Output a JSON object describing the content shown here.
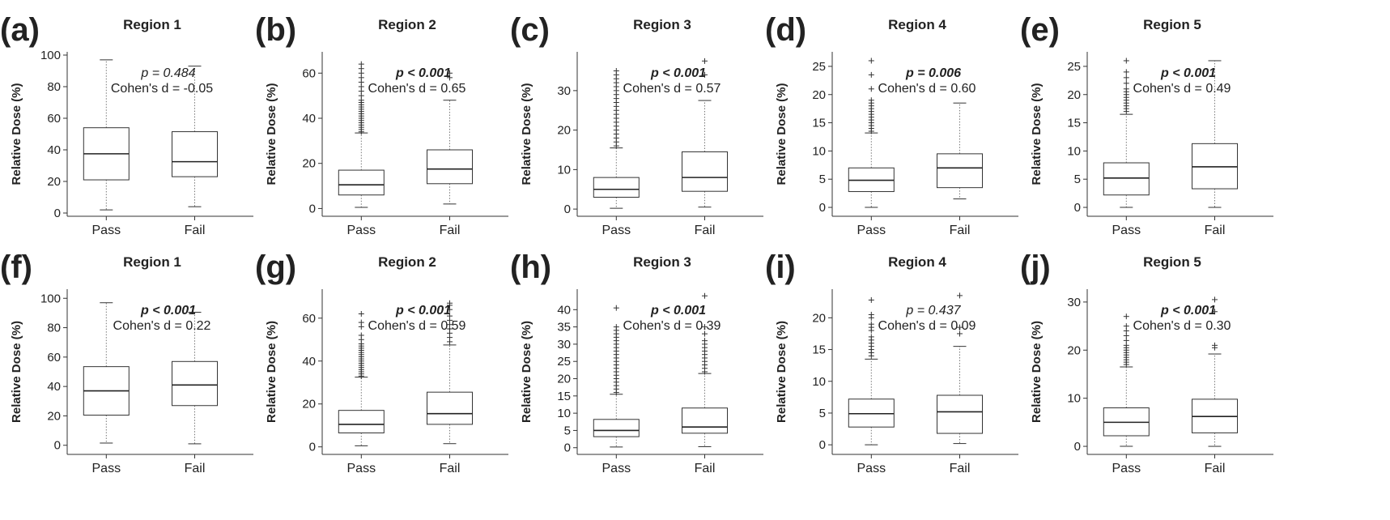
{
  "figure": {
    "ylabel": "Relative Dose (%)",
    "categories": [
      "Pass",
      "Fail"
    ]
  },
  "chart_data": [
    {
      "panel": "(a)",
      "type": "box",
      "title": "Region 1",
      "ylim": [
        0,
        100
      ],
      "yticks": [
        0,
        20,
        40,
        60,
        80,
        100
      ],
      "p_text": "p = 0.484",
      "p_bold": false,
      "d_text": "Cohen's d = -0.05",
      "boxes": [
        {
          "category": "Pass",
          "whisker_low": 2,
          "q1": 21,
          "median": 37.5,
          "q3": 54,
          "whisker_high": 97,
          "outliers": []
        },
        {
          "category": "Fail",
          "whisker_low": 4,
          "q1": 23,
          "median": 32.5,
          "q3": 51.5,
          "whisker_high": 93,
          "outliers": []
        }
      ]
    },
    {
      "panel": "(b)",
      "type": "box",
      "title": "Region 2",
      "ylim": [
        -2,
        68
      ],
      "yticks": [
        0,
        20,
        40,
        60
      ],
      "p_text": "p < 0.001",
      "p_bold": true,
      "d_text": "Cohen's d = 0.65",
      "boxes": [
        {
          "category": "Pass",
          "whisker_low": 0.5,
          "q1": 6,
          "median": 10.5,
          "q3": 17,
          "whisker_high": 33.5,
          "outliers": [
            34,
            35,
            36,
            37,
            38,
            39,
            40,
            41,
            42,
            43,
            44,
            45,
            46,
            47,
            48,
            50,
            52,
            54,
            56,
            58,
            60,
            62,
            64
          ]
        },
        {
          "category": "Fail",
          "whisker_low": 2,
          "q1": 11,
          "median": 17.5,
          "q3": 26,
          "whisker_high": 48,
          "outliers": [
            58,
            60
          ]
        }
      ]
    },
    {
      "panel": "(c)",
      "type": "box",
      "title": "Region 3",
      "ylim": [
        -1,
        39
      ],
      "yticks": [
        0,
        10,
        20,
        30
      ],
      "p_text": "p < 0.001",
      "p_bold": true,
      "d_text": "Cohen's d = 0.57",
      "boxes": [
        {
          "category": "Pass",
          "whisker_low": 0.2,
          "q1": 3,
          "median": 5,
          "q3": 8,
          "whisker_high": 15.5,
          "outliers": [
            16,
            17,
            18,
            19,
            20,
            21,
            22,
            23,
            24,
            25,
            26,
            27,
            28,
            29,
            30,
            31,
            32,
            33,
            34,
            35
          ]
        },
        {
          "category": "Fail",
          "whisker_low": 0.5,
          "q1": 4.5,
          "median": 8,
          "q3": 14.5,
          "whisker_high": 27.5,
          "outliers": [
            34,
            37.5
          ]
        }
      ]
    },
    {
      "panel": "(d)",
      "type": "box",
      "title": "Region 4",
      "ylim": [
        -1,
        27
      ],
      "yticks": [
        0,
        5,
        10,
        15,
        20,
        25
      ],
      "p_text": "p = 0.006",
      "p_bold": true,
      "d_text": "Cohen's d = 0.60",
      "boxes": [
        {
          "category": "Pass",
          "whisker_low": 0,
          "q1": 2.8,
          "median": 4.8,
          "q3": 7,
          "whisker_high": 13.2,
          "outliers": [
            13.5,
            14,
            14.5,
            15,
            15.5,
            16,
            16.5,
            17,
            17.5,
            18,
            18.5,
            19,
            21,
            23.5,
            26
          ]
        },
        {
          "category": "Fail",
          "whisker_low": 1.5,
          "q1": 3.5,
          "median": 7,
          "q3": 9.5,
          "whisker_high": 18.5,
          "outliers": []
        }
      ]
    },
    {
      "panel": "(e)",
      "type": "box",
      "title": "Region 5",
      "ylim": [
        -1,
        27
      ],
      "yticks": [
        0,
        5,
        10,
        15,
        20,
        25
      ],
      "p_text": "p < 0.001",
      "p_bold": true,
      "d_text": "Cohen's d = 0.49",
      "boxes": [
        {
          "category": "Pass",
          "whisker_low": 0,
          "q1": 2.2,
          "median": 5.2,
          "q3": 7.9,
          "whisker_high": 16.5,
          "outliers": [
            17,
            17.5,
            18,
            18.5,
            19,
            19.5,
            20,
            20.5,
            21,
            22,
            23,
            24,
            26
          ]
        },
        {
          "category": "Fail",
          "whisker_low": 0,
          "q1": 3.3,
          "median": 7.2,
          "q3": 11.3,
          "whisker_high": 26,
          "outliers": []
        }
      ]
    },
    {
      "panel": "(f)",
      "type": "box",
      "title": "Region 1",
      "ylim": [
        -4,
        104
      ],
      "yticks": [
        0,
        20,
        40,
        60,
        80,
        100
      ],
      "p_text": "p < 0.001",
      "p_bold": true,
      "d_text": "Cohen's d = 0.22",
      "boxes": [
        {
          "category": "Pass",
          "whisker_low": 1.5,
          "q1": 20.5,
          "median": 37,
          "q3": 53.5,
          "whisker_high": 97,
          "outliers": []
        },
        {
          "category": "Fail",
          "whisker_low": 1,
          "q1": 27,
          "median": 41,
          "q3": 57,
          "whisker_high": 90.5,
          "outliers": []
        }
      ]
    },
    {
      "panel": "(g)",
      "type": "box",
      "title": "Region 2",
      "ylim": [
        -2,
        72
      ],
      "yticks": [
        0,
        20,
        40,
        60
      ],
      "p_text": "p < 0.001",
      "p_bold": true,
      "d_text": "Cohen's d = 0.59",
      "boxes": [
        {
          "category": "Pass",
          "whisker_low": 0.5,
          "q1": 6.5,
          "median": 10.5,
          "q3": 17,
          "whisker_high": 32.5,
          "outliers": [
            33,
            34,
            35,
            36,
            37,
            38,
            39,
            40,
            41,
            42,
            43,
            44,
            45,
            46,
            47,
            48,
            50,
            52,
            56,
            58,
            62
          ]
        },
        {
          "category": "Fail",
          "whisker_low": 1.5,
          "q1": 10.5,
          "median": 15.5,
          "q3": 25.5,
          "whisker_high": 47.5,
          "outliers": [
            49,
            51,
            53,
            55,
            57,
            59,
            61,
            64,
            66,
            67
          ]
        }
      ]
    },
    {
      "panel": "(h)",
      "type": "box",
      "title": "Region 3",
      "ylim": [
        -1,
        45
      ],
      "yticks": [
        0,
        5,
        10,
        15,
        20,
        25,
        30,
        35,
        40
      ],
      "p_text": "p < 0.001",
      "p_bold": true,
      "d_text": "Cohen's d = 0.39",
      "boxes": [
        {
          "category": "Pass",
          "whisker_low": 0.2,
          "q1": 3.2,
          "median": 5,
          "q3": 8.2,
          "whisker_high": 15.5,
          "outliers": [
            16,
            17,
            18,
            19,
            20,
            21,
            22,
            23,
            24,
            25,
            26,
            27,
            28,
            29,
            30,
            31,
            32,
            33,
            34,
            35,
            40.5
          ]
        },
        {
          "category": "Fail",
          "whisker_low": 0.3,
          "q1": 4.2,
          "median": 6,
          "q3": 11.5,
          "whisker_high": 21.5,
          "outliers": [
            22,
            23,
            24,
            25,
            26,
            27,
            28,
            29,
            30,
            31,
            33,
            35,
            44
          ]
        }
      ]
    },
    {
      "panel": "(i)",
      "type": "box",
      "title": "Region 4",
      "ylim": [
        -1,
        24
      ],
      "yticks": [
        0,
        5,
        10,
        15,
        20
      ],
      "p_text": "p = 0.437",
      "p_bold": false,
      "d_text": "Cohen's d = 0.09",
      "boxes": [
        {
          "category": "Pass",
          "whisker_low": 0,
          "q1": 2.8,
          "median": 4.9,
          "q3": 7.2,
          "whisker_high": 13.5,
          "outliers": [
            14,
            14.5,
            15,
            15.5,
            16,
            16.5,
            17,
            18,
            18.5,
            19,
            20,
            20.5,
            22.8
          ]
        },
        {
          "category": "Fail",
          "whisker_low": 0.2,
          "q1": 1.8,
          "median": 5.2,
          "q3": 7.8,
          "whisker_high": 15.5,
          "outliers": [
            17.5,
            18.5,
            23.5
          ]
        }
      ]
    },
    {
      "panel": "(j)",
      "type": "box",
      "title": "Region 5",
      "ylim": [
        -1,
        32
      ],
      "yticks": [
        0,
        10,
        20,
        30
      ],
      "p_text": "p < 0.001",
      "p_bold": true,
      "d_text": "Cohen's d = 0.30",
      "boxes": [
        {
          "category": "Pass",
          "whisker_low": 0,
          "q1": 2.2,
          "median": 5,
          "q3": 8,
          "whisker_high": 16.5,
          "outliers": [
            17,
            17.5,
            18,
            18.5,
            19,
            19.5,
            20,
            20.5,
            21,
            22,
            23,
            24,
            25,
            27
          ]
        },
        {
          "category": "Fail",
          "whisker_low": 0,
          "q1": 2.8,
          "median": 6.2,
          "q3": 9.8,
          "whisker_high": 19.2,
          "outliers": [
            20.5,
            21,
            28,
            30.5
          ]
        }
      ]
    }
  ]
}
